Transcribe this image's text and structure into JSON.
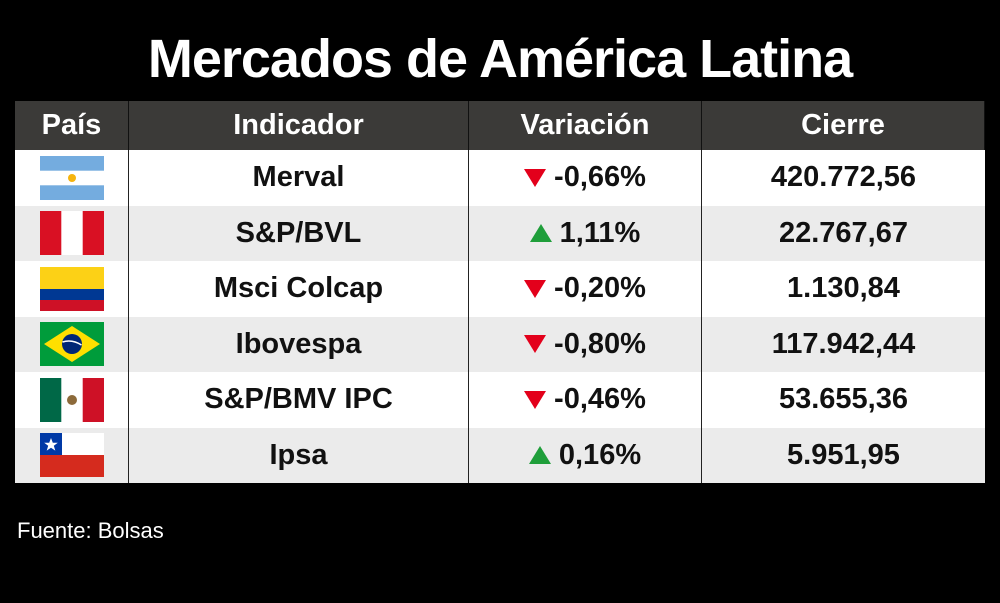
{
  "title": "Mercados de América Latina",
  "columns": [
    "País",
    "Indicador",
    "Variación",
    "Cierre"
  ],
  "colors": {
    "up": "#1f9e3a",
    "down": "#e3001b",
    "header_bg": "#3b3a38"
  },
  "chart_data": {
    "type": "table",
    "title": "Mercados de América Latina",
    "columns": [
      "País",
      "Indicador",
      "Variación",
      "Cierre"
    ],
    "rows": [
      {
        "country": "Argentina",
        "flag": "argentina-flag-icon",
        "indicator": "Merval",
        "direction": "down",
        "variation": "-0,66%",
        "close": "420.772,56"
      },
      {
        "country": "Perú",
        "flag": "peru-flag-icon",
        "indicator": "S&P/BVL",
        "direction": "up",
        "variation": "1,11%",
        "close": "22.767,67"
      },
      {
        "country": "Colombia",
        "flag": "colombia-flag-icon",
        "indicator": "Msci Colcap",
        "direction": "down",
        "variation": "-0,20%",
        "close": "1.130,84"
      },
      {
        "country": "Brasil",
        "flag": "brazil-flag-icon",
        "indicator": "Ibovespa",
        "direction": "down",
        "variation": "-0,80%",
        "close": "117.942,44"
      },
      {
        "country": "México",
        "flag": "mexico-flag-icon",
        "indicator": "S&P/BMV IPC",
        "direction": "down",
        "variation": "-0,46%",
        "close": "53.655,36"
      },
      {
        "country": "Chile",
        "flag": "chile-flag-icon",
        "indicator": "Ipsa",
        "direction": "up",
        "variation": "0,16%",
        "close": "5.951,95"
      }
    ]
  },
  "source": "Fuente: Bolsas"
}
